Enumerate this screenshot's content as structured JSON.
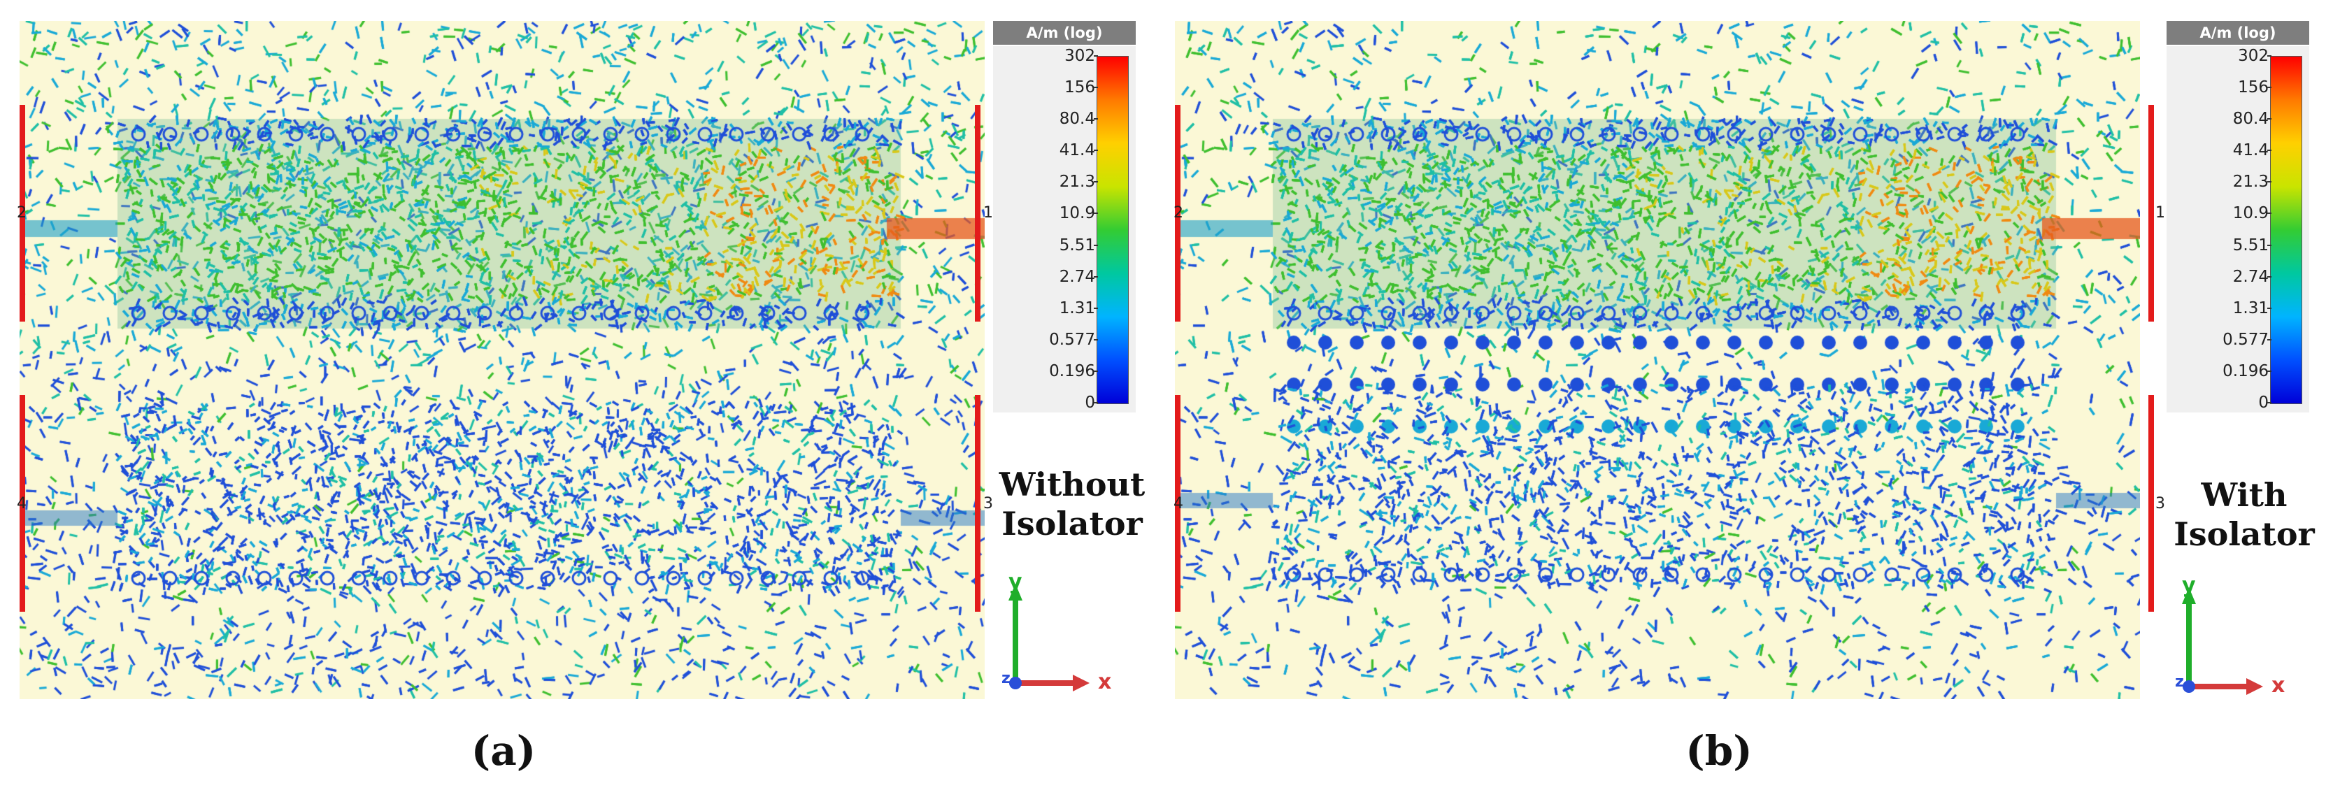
{
  "colorbar": {
    "title": "A/m (log)",
    "ticks": [
      "302",
      "156",
      "80.4",
      "41.4",
      "21.3",
      "10.9",
      "5.51",
      "2.74",
      "1.31",
      "0.577",
      "0.196",
      "0"
    ],
    "colors": [
      "#ff0000",
      "#ff7a00",
      "#ffd000",
      "#c9e400",
      "#33cc33",
      "#00c8a0",
      "#00b4ff",
      "#0050ff",
      "#0000d8"
    ]
  },
  "panels": [
    {
      "sub_label": "(a)",
      "caption_line1": "Without",
      "caption_line2": "Isolator",
      "ports": [
        "2",
        "1",
        "4",
        "3"
      ],
      "axis": {
        "y": "y",
        "z": "z",
        "x": "x"
      }
    },
    {
      "sub_label": "(b)",
      "caption_line1": "With",
      "caption_line2": "Isolator",
      "ports": [
        "2",
        "1",
        "4",
        "3"
      ],
      "axis": {
        "y": "y",
        "z": "z",
        "x": "x"
      }
    }
  ]
}
